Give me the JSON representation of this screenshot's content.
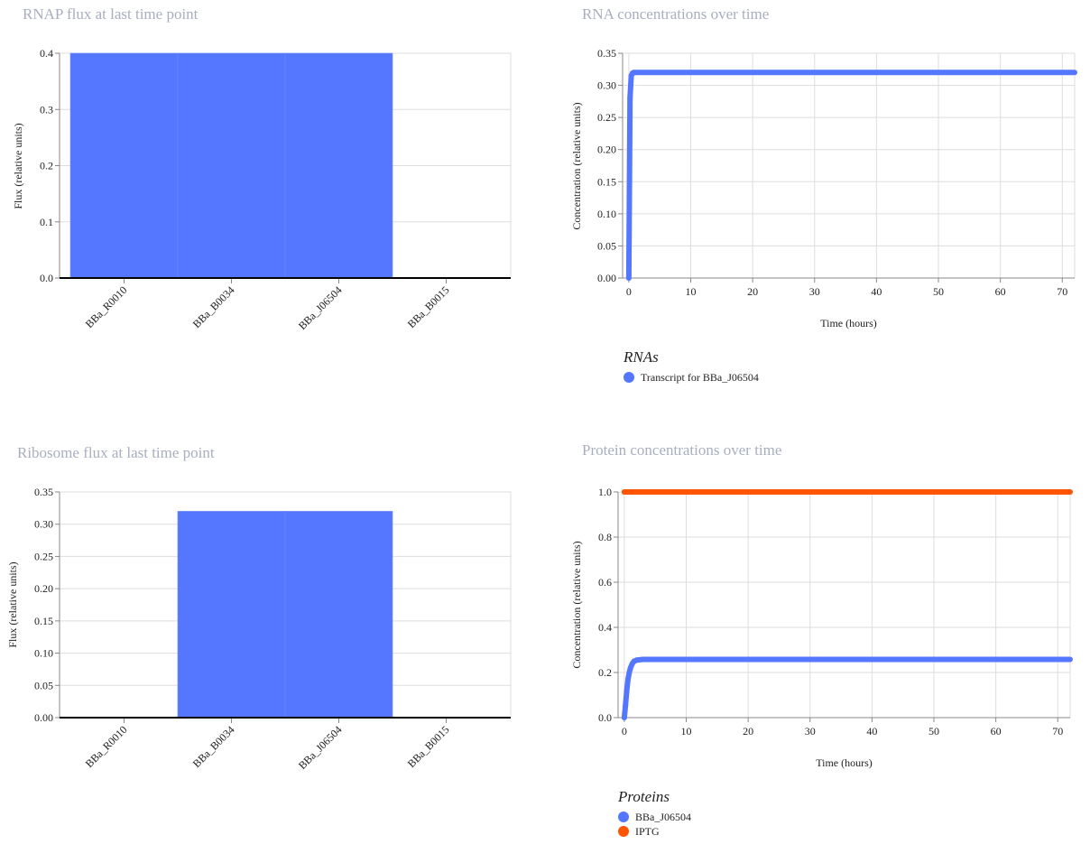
{
  "chart_data": [
    {
      "type": "bar",
      "title": "RNAP flux at last time point",
      "ylabel": "Flux (relative units)",
      "xlabel": "",
      "categories": [
        "BBa_R0010",
        "BBa_B0034",
        "BBa_J06504",
        "BBa_B0015"
      ],
      "values": [
        0.4,
        0.4,
        0.4,
        0.0
      ],
      "ylim": [
        0,
        0.4
      ],
      "yticks": [
        "0.0",
        "0.1",
        "0.2",
        "0.3",
        "0.4"
      ],
      "grid": true,
      "color": "#5577ff"
    },
    {
      "type": "line",
      "title": "RNA concentrations over time",
      "xlabel": "Time (hours)",
      "ylabel": "Concentration (relative units)",
      "xlim": [
        -1,
        72
      ],
      "ylim": [
        0,
        0.35
      ],
      "xticks": [
        "0",
        "10",
        "20",
        "30",
        "40",
        "50",
        "60",
        "70"
      ],
      "yticks": [
        "0.00",
        "0.05",
        "0.10",
        "0.15",
        "0.20",
        "0.25",
        "0.30",
        "0.35"
      ],
      "grid": true,
      "legend_title": "RNAs",
      "legend_position": "bottom",
      "series": [
        {
          "name": "Transcript for BBa_J06504",
          "color": "#5577ff",
          "x": [
            0,
            0.2,
            0.4,
            0.6,
            0.8,
            1.0,
            72
          ],
          "y": [
            0.0,
            0.28,
            0.315,
            0.319,
            0.32,
            0.32,
            0.32
          ]
        }
      ]
    },
    {
      "type": "bar",
      "title": "Ribosome flux at last time point",
      "ylabel": "Flux (relative units)",
      "xlabel": "",
      "categories": [
        "BBa_R0010",
        "BBa_B0034",
        "BBa_J06504",
        "BBa_B0015"
      ],
      "values": [
        0.0,
        0.32,
        0.32,
        0.0
      ],
      "ylim": [
        0,
        0.35
      ],
      "yticks": [
        "0.00",
        "0.05",
        "0.10",
        "0.15",
        "0.20",
        "0.25",
        "0.30",
        "0.35"
      ],
      "grid": true,
      "color": "#5577ff"
    },
    {
      "type": "line",
      "title": "Protein concentrations over time",
      "xlabel": "Time (hours)",
      "ylabel": "Concentration (relative units)",
      "xlim": [
        -1,
        72
      ],
      "ylim": [
        0,
        1.0
      ],
      "xticks": [
        "0",
        "10",
        "20",
        "30",
        "40",
        "50",
        "60",
        "70"
      ],
      "yticks": [
        "0.0",
        "0.2",
        "0.4",
        "0.6",
        "0.8",
        "1.0"
      ],
      "grid": true,
      "legend_title": "Proteins",
      "legend_position": "bottom",
      "series": [
        {
          "name": "BBa_J06504",
          "color": "#5577ff",
          "x": [
            0,
            0.2,
            0.4,
            0.6,
            0.8,
            1.0,
            1.3,
            1.6,
            2.0,
            3.0,
            72
          ],
          "y": [
            0.0,
            0.055,
            0.12,
            0.17,
            0.2,
            0.22,
            0.24,
            0.25,
            0.255,
            0.258,
            0.258
          ]
        },
        {
          "name": "IPTG",
          "color": "#ff5500",
          "x": [
            0,
            72
          ],
          "y": [
            1.0,
            1.0
          ]
        }
      ]
    }
  ]
}
